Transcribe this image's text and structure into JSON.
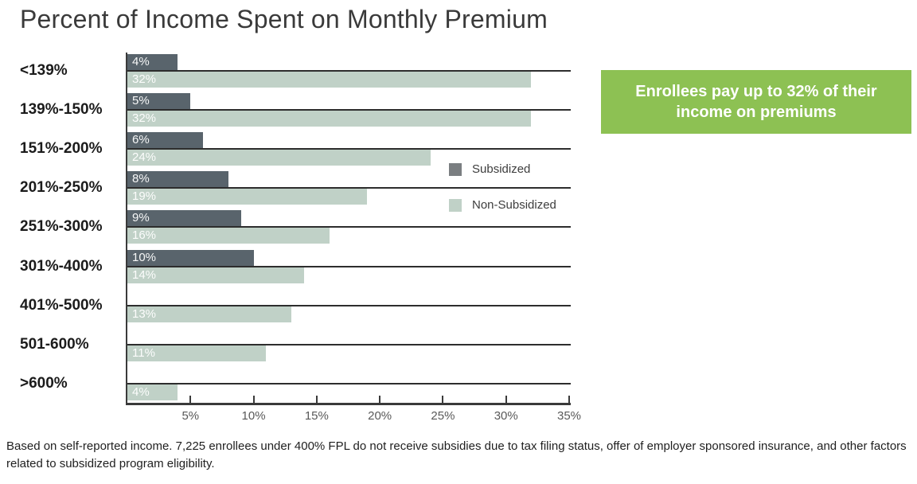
{
  "title": "Percent of Income Spent on Monthly Premium",
  "callout": {
    "text": "Enrollees pay up to 32% of their income on premiums",
    "bg_color": "#8dc153",
    "text_color": "#ffffff"
  },
  "legend": {
    "items": [
      {
        "label": "Subsidized",
        "color": "#7a7e81"
      },
      {
        "label": "Non-Subsidized",
        "color": "#c0d1c7"
      }
    ]
  },
  "footnote": "Based on self-reported income. 7,225 enrollees under 400% FPL do not receive subsidies due to tax filing status, offer of employer sponsored insurance, and other factors related to subsidized program eligibility.",
  "chart_data": {
    "type": "bar",
    "orientation": "horizontal",
    "title": "Percent of Income Spent on Monthly Premium",
    "categories": [
      "<139%",
      "139%-150%",
      "151%-200%",
      "201%-250%",
      "251%-300%",
      "301%-400%",
      "401%-500%",
      "501-600%",
      ">600%"
    ],
    "series": [
      {
        "name": "Subsidized",
        "color": "#59646c",
        "values": [
          4,
          5,
          6,
          8,
          9,
          10,
          null,
          null,
          null
        ]
      },
      {
        "name": "Non-Subsidized",
        "color": "#c0d1c7",
        "values": [
          32,
          32,
          24,
          19,
          16,
          14,
          13,
          11,
          4
        ]
      }
    ],
    "data_labels_suffix": "%",
    "x_ticks": [
      "5%",
      "10%",
      "15%",
      "20%",
      "25%",
      "30%",
      "35%"
    ],
    "xlim": [
      0,
      35
    ],
    "grid": "category-divider-lines",
    "legend_position": "inside-right"
  }
}
